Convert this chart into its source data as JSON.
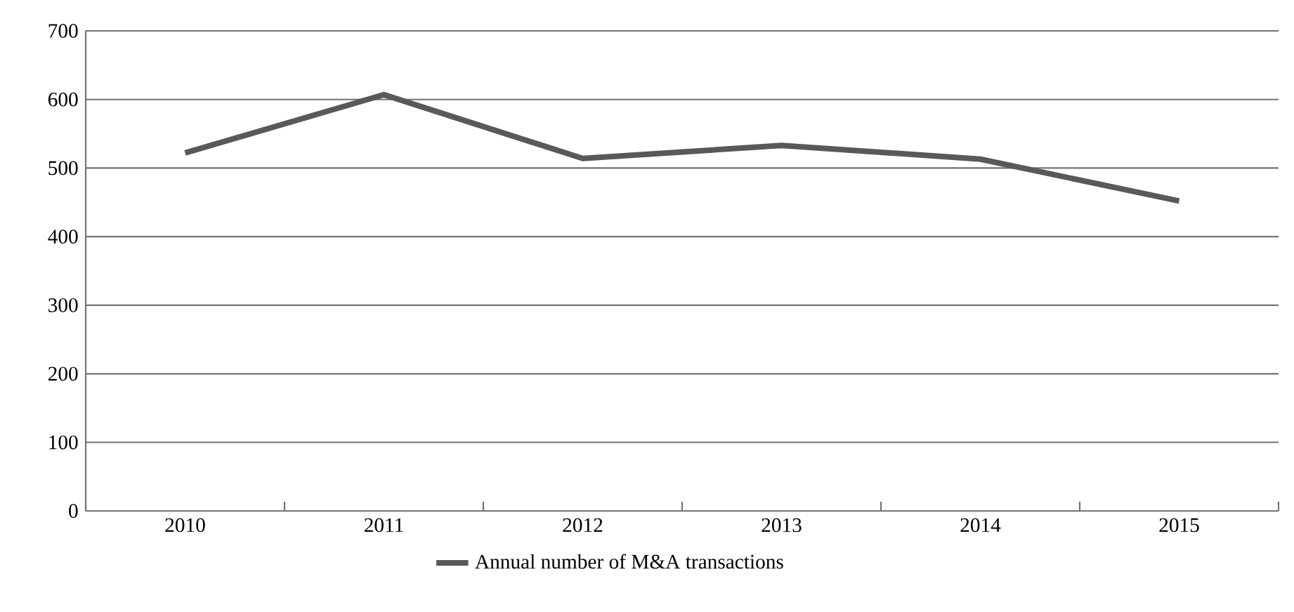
{
  "chart_data": {
    "type": "line",
    "categories": [
      "2010",
      "2011",
      "2012",
      "2013",
      "2014",
      "2015"
    ],
    "series": [
      {
        "name": "Annual number of M&A transactions",
        "color": "#595959",
        "values": [
          522,
          607,
          514,
          533,
          513,
          452
        ]
      }
    ],
    "ylim": [
      0,
      700
    ],
    "yticks": [
      0,
      100,
      200,
      300,
      400,
      500,
      600,
      700
    ],
    "grid": "y",
    "legend": "bottom",
    "marker": "none",
    "line_style": "solid"
  }
}
